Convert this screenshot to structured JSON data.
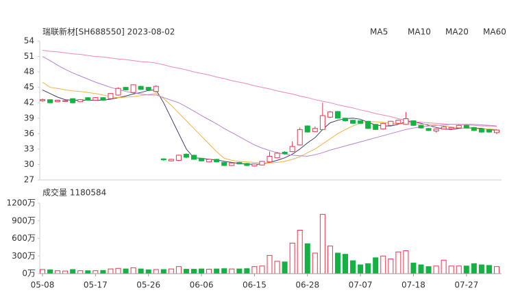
{
  "chart_data": [
    {
      "type": "candlestick",
      "title": "瑞联新材[SH688550] 2023-08-02",
      "up_color": "#e8334a",
      "down_color": "#14b143",
      "open": [
        42.4,
        42.6,
        42.2,
        42.3,
        42.8,
        42.2,
        43.0,
        42.5,
        43.0,
        42.8,
        43.5,
        45.0,
        44.0,
        45.2,
        45.0,
        44.2,
        31.1,
        30.7,
        30.8,
        32.0,
        31.8,
        31.2,
        30.5,
        31.0,
        30.4,
        29.8,
        30.4,
        30.2,
        29.7,
        29.9,
        30.5,
        31.3,
        32.4,
        32.5,
        33.8,
        37.5,
        36.4,
        36.8,
        39.2,
        40.3,
        39.0,
        38.6,
        38.5,
        38.4,
        37.8,
        36.9,
        37.6,
        38.0,
        37.8,
        38.5,
        37.6,
        37.0,
        36.5,
        36.9,
        36.9,
        37.1,
        37.6,
        37.2,
        36.9,
        36.8,
        36.2
      ],
      "close": [
        42.6,
        42.0,
        42.5,
        42.4,
        42.0,
        42.6,
        42.5,
        43.0,
        42.5,
        43.8,
        44.8,
        44.5,
        45.5,
        44.6,
        44.5,
        45.2,
        30.9,
        31.0,
        31.8,
        31.4,
        31.0,
        30.7,
        31.0,
        30.5,
        29.8,
        30.3,
        30.1,
        29.8,
        30.1,
        30.6,
        31.6,
        32.2,
        32.1,
        33.5,
        36.8,
        36.3,
        37.0,
        39.5,
        40.2,
        39.0,
        38.5,
        38.0,
        38.0,
        37.0,
        36.8,
        38.0,
        38.4,
        38.6,
        38.9,
        37.6,
        37.1,
        36.6,
        36.9,
        37.3,
        37.2,
        37.6,
        37.1,
        36.6,
        36.3,
        36.3,
        36.7
      ],
      "high": [
        42.8,
        42.7,
        42.6,
        42.5,
        42.9,
        42.7,
        43.1,
        43.1,
        43.1,
        43.9,
        45.0,
        45.1,
        45.6,
        45.3,
        45.1,
        45.4,
        31.2,
        31.1,
        31.9,
        32.2,
        31.9,
        31.3,
        31.1,
        31.1,
        30.5,
        30.4,
        30.5,
        30.3,
        30.2,
        30.7,
        32.5,
        32.4,
        32.6,
        34.5,
        37.2,
        37.6,
        37.4,
        42.0,
        40.4,
        40.4,
        39.1,
        38.7,
        38.6,
        38.5,
        37.9,
        38.1,
        38.5,
        38.7,
        40.2,
        38.6,
        37.7,
        37.1,
        37.0,
        37.5,
        37.3,
        37.7,
        37.7,
        37.3,
        37.0,
        36.9,
        36.8
      ],
      "low": [
        42.2,
        41.9,
        42.1,
        42.2,
        41.9,
        42.1,
        42.4,
        42.4,
        42.4,
        42.7,
        43.4,
        44.4,
        43.9,
        44.5,
        44.4,
        44.0,
        30.7,
        30.6,
        30.7,
        31.2,
        30.9,
        30.6,
        30.4,
        30.4,
        29.7,
        29.7,
        30.0,
        29.7,
        29.6,
        29.8,
        30.4,
        31.2,
        31.9,
        32.4,
        33.7,
        36.2,
        36.3,
        36.7,
        39.0,
        38.9,
        38.3,
        37.9,
        37.9,
        36.9,
        36.7,
        36.8,
        37.5,
        37.9,
        37.7,
        37.5,
        37.0,
        36.5,
        36.2,
        36.8,
        36.8,
        37.0,
        37.0,
        36.5,
        36.2,
        36.2,
        35.9
      ],
      "series": [
        {
          "name": "MA5",
          "color": "#3b3b6d",
          "values": [
            44.5,
            43.8,
            43.1,
            42.6,
            42.5,
            42.5,
            42.5,
            42.5,
            42.5,
            42.7,
            43.0,
            43.3,
            43.7,
            44.0,
            44.4,
            44.5,
            42.0,
            39.0,
            36.0,
            33.0,
            31.3,
            31.2,
            31.0,
            30.9,
            30.6,
            30.4,
            30.2,
            30.1,
            30.0,
            30.1,
            30.4,
            30.8,
            31.3,
            32.0,
            33.0,
            34.2,
            35.2,
            36.8,
            38.1,
            38.6,
            38.9,
            39.0,
            38.8,
            38.2,
            37.7,
            37.5,
            37.5,
            37.8,
            38.3,
            38.3,
            38.0,
            37.6,
            37.2,
            36.9,
            36.8,
            37.0,
            37.1,
            37.1,
            37.0,
            36.8,
            36.6
          ]
        },
        {
          "name": "MA10",
          "color": "#f5b342",
          "values": [
            46.0,
            45.0,
            44.8,
            44.5,
            44.3,
            44.2,
            44.0,
            43.8,
            43.5,
            43.2,
            43.0,
            43.1,
            43.2,
            43.4,
            43.6,
            43.8,
            42.8,
            41.5,
            40.0,
            38.5,
            37.0,
            35.5,
            34.0,
            32.5,
            31.2,
            30.8,
            30.6,
            30.5,
            30.4,
            30.3,
            30.3,
            30.4,
            30.6,
            31.0,
            31.5,
            32.3,
            33.0,
            34.0,
            35.0,
            36.0,
            36.8,
            37.5,
            38.0,
            38.3,
            38.3,
            38.2,
            38.0,
            37.9,
            37.9,
            37.9,
            37.8,
            37.8,
            37.7,
            37.5,
            37.3,
            37.1,
            37.0,
            37.0,
            36.9,
            36.9,
            36.8
          ]
        },
        {
          "name": "MA20",
          "color": "#b880d8",
          "values": [
            51.0,
            50.2,
            49.3,
            48.5,
            47.8,
            47.2,
            46.6,
            46.0,
            45.5,
            45.0,
            44.6,
            44.2,
            43.9,
            43.7,
            43.5,
            43.5,
            43.0,
            42.5,
            42.0,
            41.2,
            40.4,
            39.5,
            38.7,
            37.9,
            37.0,
            36.2,
            35.4,
            34.6,
            33.8,
            33.2,
            32.7,
            32.3,
            32.0,
            31.8,
            31.7,
            31.6,
            31.9,
            32.3,
            32.8,
            33.2,
            33.6,
            34.0,
            34.4,
            34.8,
            35.2,
            35.6,
            36.0,
            36.4,
            36.8,
            37.1,
            37.3,
            37.5,
            37.6,
            37.7,
            37.8,
            37.8,
            37.8,
            37.8,
            37.7,
            37.6,
            37.5
          ]
        },
        {
          "name": "MA60",
          "color": "#ec86bc",
          "values": [
            52.2,
            52.0,
            51.9,
            51.7,
            51.5,
            51.4,
            51.2,
            51.0,
            50.9,
            50.7,
            50.5,
            50.4,
            50.2,
            50.0,
            49.9,
            49.7,
            49.4,
            49.0,
            48.7,
            48.4,
            48.0,
            47.7,
            47.4,
            47.0,
            46.7,
            46.3,
            46.0,
            45.7,
            45.3,
            45.0,
            44.7,
            44.3,
            44.0,
            43.7,
            43.3,
            43.0,
            42.6,
            42.3,
            42.0,
            41.6,
            41.3,
            41.0,
            40.6,
            40.3,
            39.9,
            39.6,
            39.3,
            38.9,
            38.6,
            38.3,
            38.2,
            38.1,
            38.0,
            37.9,
            37.8,
            37.8,
            37.7,
            37.6,
            37.5,
            37.5,
            37.4
          ]
        }
      ],
      "ylim": [
        27,
        54
      ],
      "yticks": [
        27,
        30,
        33,
        36,
        39,
        42,
        45,
        48,
        51,
        54
      ]
    },
    {
      "type": "bar",
      "title": "成交量 1180584",
      "categories": [
        "05-08",
        null,
        null,
        null,
        null,
        null,
        null,
        "05-17",
        null,
        null,
        null,
        null,
        null,
        null,
        "05-26",
        null,
        null,
        null,
        null,
        null,
        null,
        "06-06",
        null,
        null,
        null,
        null,
        null,
        null,
        "06-15",
        null,
        null,
        null,
        null,
        null,
        null,
        "06-28",
        null,
        null,
        null,
        null,
        null,
        null,
        "07-07",
        null,
        null,
        null,
        null,
        null,
        null,
        "07-18",
        null,
        null,
        null,
        null,
        null,
        null,
        "07-27",
        null,
        null,
        null,
        null
      ],
      "values": [
        70,
        65,
        50,
        45,
        70,
        50,
        50,
        50,
        55,
        80,
        90,
        80,
        100,
        80,
        65,
        70,
        70,
        80,
        120,
        75,
        75,
        80,
        75,
        80,
        85,
        80,
        80,
        85,
        120,
        130,
        310,
        210,
        200,
        520,
        740,
        510,
        350,
        1010,
        470,
        350,
        330,
        220,
        150,
        170,
        270,
        300,
        250,
        370,
        390,
        180,
        150,
        120,
        130,
        230,
        130,
        130,
        130,
        170,
        150,
        140,
        120
      ],
      "ylim": [
        0,
        1200
      ],
      "yticks": [
        {
          "value": 0,
          "label": "0万"
        },
        {
          "value": 300,
          "label": "300万"
        },
        {
          "value": 600,
          "label": "600万"
        },
        {
          "value": 900,
          "label": "900万"
        },
        {
          "value": 1200,
          "label": "1200万"
        }
      ]
    }
  ]
}
